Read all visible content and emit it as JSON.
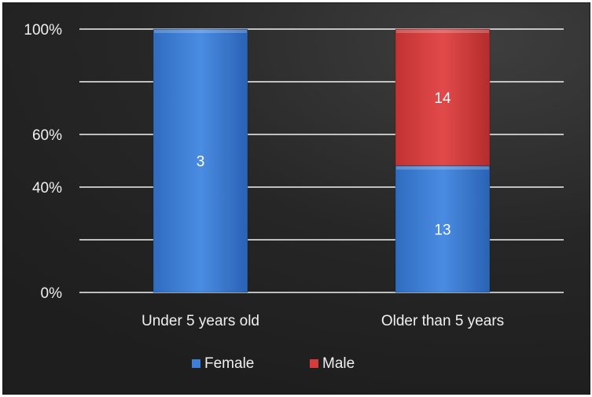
{
  "chart_data": {
    "type": "bar",
    "stacked": "percent",
    "categories": [
      "Under 5 years old",
      "Older than 5 years"
    ],
    "series": [
      {
        "name": "Female",
        "values": [
          3,
          13
        ],
        "color": "#3d7fd6"
      },
      {
        "name": "Male",
        "values": [
          0,
          14
        ],
        "color": "#d63c3c"
      }
    ],
    "ylim": [
      0,
      100
    ],
    "yticks": [
      0,
      20,
      40,
      60,
      80,
      100
    ],
    "ytick_labels": [
      "0%",
      "",
      "40%",
      "60%",
      "",
      "100%"
    ],
    "grid": true,
    "legend_position": "bottom",
    "title": "",
    "xlabel": "",
    "ylabel": ""
  }
}
